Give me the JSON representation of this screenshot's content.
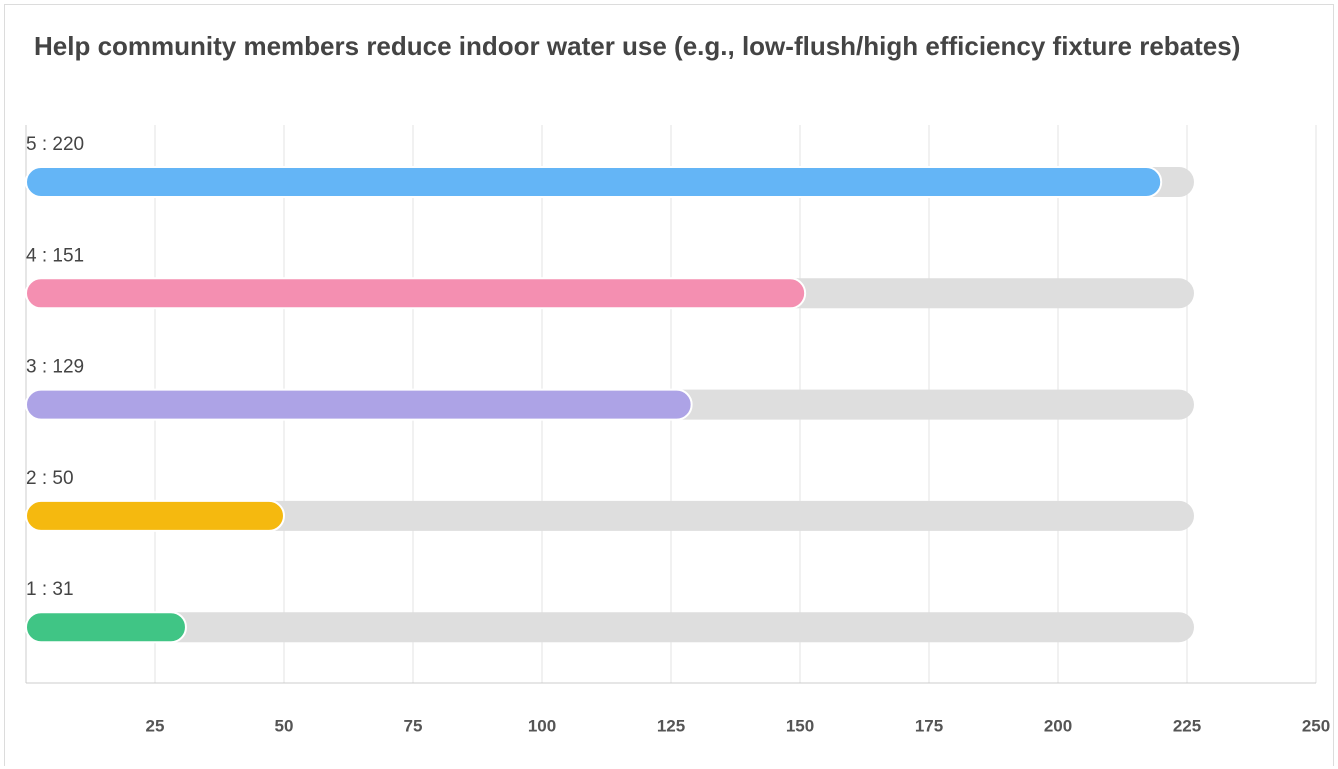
{
  "chart_data": {
    "type": "bar",
    "orientation": "horizontal",
    "title": "Help community members reduce indoor water use (e.g., low-flush/high efficiency fixture rebates)",
    "values": [
      220,
      151,
      129,
      50,
      31
    ],
    "value_labels": [
      "5 : 220",
      "4 : 151",
      "3 : 129",
      "2 : 50",
      "1 : 31"
    ],
    "colors": [
      "#64b5f6",
      "#f48fb1",
      "#ada3e6",
      "#f5b90f",
      "#40c585"
    ],
    "xlim": [
      0,
      250
    ],
    "xticks": [
      25,
      50,
      75,
      100,
      125,
      150,
      175,
      200,
      225,
      250
    ],
    "grid": true
  }
}
